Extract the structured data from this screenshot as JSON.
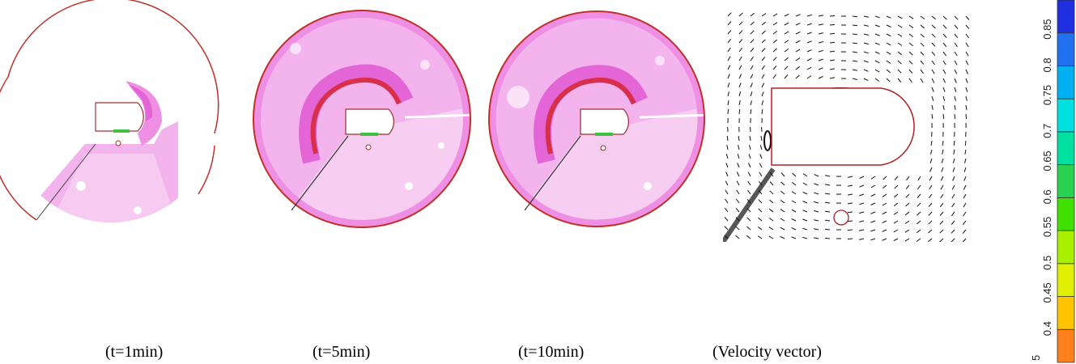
{
  "panels": [
    {
      "caption": "(t=1min)"
    },
    {
      "caption": "(t=5min)"
    },
    {
      "caption": "(t=10min)"
    },
    {
      "caption": "(Velocity vector)"
    }
  ],
  "legend": {
    "labels": [
      "0.4",
      "0.45",
      "0.5",
      "0.55",
      "0.6",
      "0.65",
      "0.7",
      "0.75",
      "0.8",
      "0.85"
    ],
    "partial_label": "5",
    "colors": [
      "#ff7f1a",
      "#ffc400",
      "#e0f000",
      "#a8f000",
      "#40e000",
      "#28d250",
      "#00e0a0",
      "#00e0e0",
      "#00b0f0",
      "#2070f0",
      "#2030e0"
    ]
  }
}
